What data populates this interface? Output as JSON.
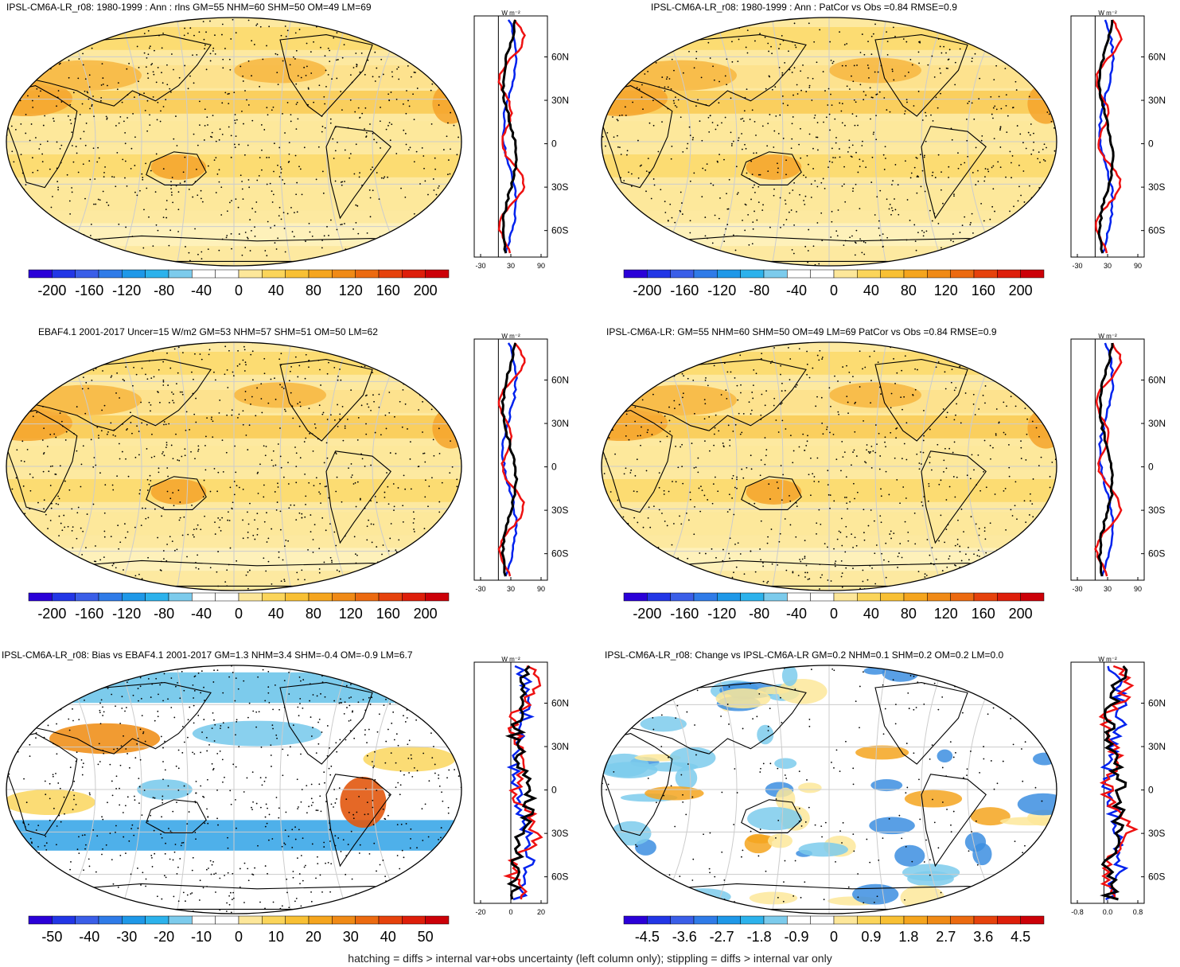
{
  "colors": {
    "ocean": "#fde9a0",
    "land_line": "#000000",
    "grid": "#bbbbbb",
    "blue_line": "#0022ee",
    "red_line": "#ee1111",
    "black_line": "#000000"
  },
  "zonal_unit": "W m⁻²",
  "lat_labels": [
    "60N",
    "30N",
    "0",
    "30S",
    "60S"
  ],
  "footnote": "hatching = diffs > internal var+obs uncertainty (left column only); stippling = diffs > internal var only",
  "panels": [
    {
      "id": "p1",
      "title": "IPSL-CM6A-LR_r08: 1980-1999 : Ann : rlns GM=55 NHM=60 SHM=50 OM=49 LM=69",
      "colorbar_labels": [
        "-200",
        "-160",
        "-120",
        "-80",
        "-40",
        "0",
        "40",
        "80",
        "120",
        "160",
        "200"
      ],
      "zonal_ticks": [
        "-30",
        "30",
        "90"
      ],
      "map_style": "warm"
    },
    {
      "id": "p2",
      "title": "IPSL-CM6A-LR_r08: 1980-1999 : Ann : PatCor vs Obs =0.84 RMSE=0.9",
      "colorbar_labels": [
        "-200",
        "-160",
        "-120",
        "-80",
        "-40",
        "0",
        "40",
        "80",
        "120",
        "160",
        "200"
      ],
      "zonal_ticks": [
        "-30",
        "30",
        "90"
      ],
      "map_style": "warm"
    },
    {
      "id": "p3",
      "title": "EBAF4.1 2001-2017 Uncer=15 W/m2 GM=53 NHM=57 SHM=51 OM=50 LM=62",
      "colorbar_labels": [
        "-200",
        "-160",
        "-120",
        "-80",
        "-40",
        "0",
        "40",
        "80",
        "120",
        "160",
        "200"
      ],
      "zonal_ticks": [
        "-30",
        "30",
        "90"
      ],
      "map_style": "warm"
    },
    {
      "id": "p4",
      "title": "IPSL-CM6A-LR: GM=55 NHM=60 SHM=50 OM=49 LM=69 PatCor vs Obs =0.84 RMSE=0.9",
      "colorbar_labels": [
        "-200",
        "-160",
        "-120",
        "-80",
        "-40",
        "0",
        "40",
        "80",
        "120",
        "160",
        "200"
      ],
      "zonal_ticks": [
        "-30",
        "30",
        "90"
      ],
      "map_style": "warm"
    },
    {
      "id": "p5",
      "title": "IPSL-CM6A-LR_r08: Bias vs EBAF4.1 2001-2017 GM=1.3 NHM=3.4 SHM=-0.4 OM=-0.9 LM=6.7",
      "colorbar_labels": [
        "-50",
        "-40",
        "-30",
        "-20",
        "-10",
        "0",
        "10",
        "20",
        "30",
        "40",
        "50"
      ],
      "zonal_ticks": [
        "-20",
        "0",
        "20"
      ],
      "map_style": "bias"
    },
    {
      "id": "p6",
      "title": "IPSL-CM6A-LR_r08: Change vs IPSL-CM6A-LR GM=0.2 NHM=0.1 SHM=0.2 OM=0.2 LM=0.0",
      "colorbar_labels": [
        "-4.5",
        "-3.6",
        "-2.7",
        "-1.8",
        "-0.9",
        "0",
        "0.9",
        "1.8",
        "2.7",
        "3.6",
        "4.5"
      ],
      "zonal_ticks": [
        "-0.8",
        "0.0",
        "0.8"
      ],
      "map_style": "change"
    }
  ],
  "colorbar_palette": [
    "#2a00d8",
    "#2236e6",
    "#3a5ee8",
    "#2f7be8",
    "#1e98e8",
    "#2cb2ec",
    "#7ccbec",
    "#ffffff",
    "#ffffff",
    "#fde79a",
    "#fbd55a",
    "#f8c034",
    "#f5a51e",
    "#f08a16",
    "#ec6a10",
    "#e6420c",
    "#de1e0a",
    "#cc0008"
  ]
}
